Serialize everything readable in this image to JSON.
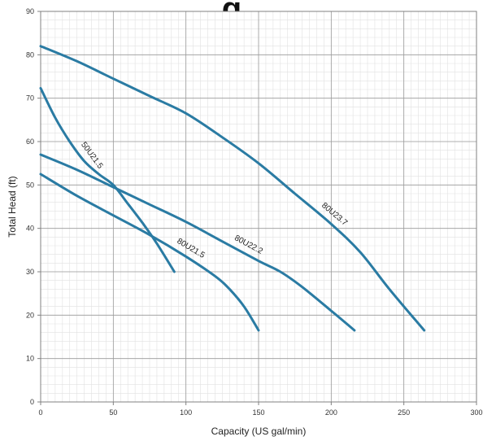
{
  "header": {
    "title_fragment": "g"
  },
  "chart_data": {
    "type": "line",
    "title": "",
    "xlabel": "Capacity (US gal/min)",
    "ylabel": "Total Head (ft)",
    "xlim": [
      0,
      300
    ],
    "ylim": [
      0,
      90
    ],
    "x_ticks": [
      0,
      50,
      100,
      150,
      200,
      250,
      300
    ],
    "y_ticks": [
      0,
      10,
      20,
      30,
      40,
      50,
      60,
      70,
      80,
      90
    ],
    "grid": true,
    "minor_grid": true,
    "line_color": "#2a7ba3",
    "series": [
      {
        "name": "50U21.5",
        "x": [
          0,
          10,
          20,
          30,
          40,
          50,
          60,
          70,
          80,
          92
        ],
        "y": [
          72.3,
          65.5,
          60,
          55.5,
          52.5,
          50,
          45.7,
          41.3,
          36.5,
          30
        ]
      },
      {
        "name": "80U21.5",
        "x": [
          0,
          25,
          50,
          75,
          100,
          120,
          130,
          140,
          150
        ],
        "y": [
          52.5,
          47.5,
          43,
          38.5,
          33.5,
          29,
          26,
          22,
          16.5
        ]
      },
      {
        "name": "80U22.2",
        "x": [
          0,
          25,
          50,
          75,
          100,
          125,
          150,
          165,
          180,
          200,
          216
        ],
        "y": [
          57,
          53.5,
          49.5,
          45.5,
          41.5,
          37,
          32.5,
          30,
          26.5,
          21,
          16.5
        ]
      },
      {
        "name": "80U23.7",
        "x": [
          0,
          25,
          50,
          75,
          100,
          125,
          150,
          175,
          200,
          220,
          240,
          264
        ],
        "y": [
          82,
          78.5,
          74.5,
          70.5,
          66.5,
          61,
          55,
          48,
          41,
          34.5,
          26,
          16.5
        ]
      }
    ],
    "annotations": [
      "50U21.5",
      "80U21.5",
      "80U22.2",
      "80U23.7"
    ]
  }
}
